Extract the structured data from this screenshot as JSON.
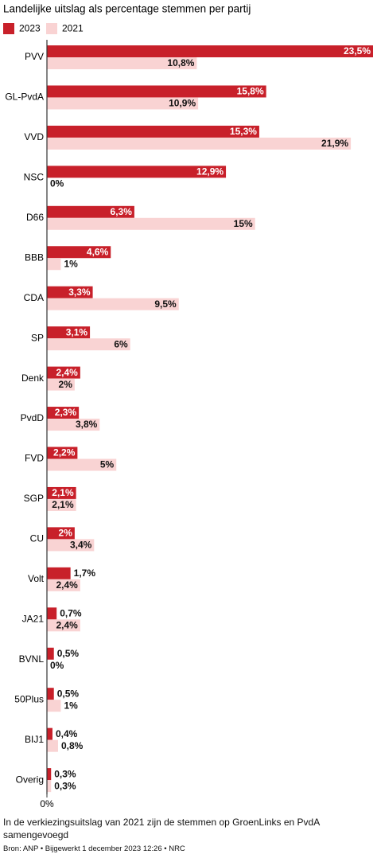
{
  "chart_data": {
    "type": "hbar",
    "title": "Landelijke uitslag als percentage stemmen per partij",
    "categories": [
      "PVV",
      "GL-PvdA",
      "VVD",
      "NSC",
      "D66",
      "BBB",
      "CDA",
      "SP",
      "Denk",
      "PvdD",
      "FVD",
      "SGP",
      "CU",
      "Volt",
      "JA21",
      "BVNL",
      "50Plus",
      "BIJ1",
      "Overig"
    ],
    "series": [
      {
        "name": "2023",
        "color": "#c8202a",
        "label_color_inside": "#ffffff",
        "values": [
          23.5,
          15.8,
          15.3,
          12.9,
          6.3,
          4.6,
          3.3,
          3.1,
          2.4,
          2.3,
          2.2,
          2.1,
          2,
          1.7,
          0.7,
          0.5,
          0.5,
          0.4,
          0.3
        ],
        "value_labels": [
          "23,5%",
          "15,8%",
          "15,3%",
          "12,9%",
          "6,3%",
          "4,6%",
          "3,3%",
          "3,1%",
          "2,4%",
          "2,3%",
          "2,2%",
          "2,1%",
          "2%",
          "1,7%",
          "0,7%",
          "0,5%",
          "0,5%",
          "0,4%",
          "0,3%"
        ]
      },
      {
        "name": "2021",
        "color": "#f9d3d3",
        "label_color_inside": "#111111",
        "values": [
          10.8,
          10.9,
          21.9,
          0,
          15,
          1,
          9.5,
          6,
          2,
          3.8,
          5,
          2.1,
          3.4,
          2.4,
          2.4,
          0,
          1,
          0.8,
          0.3
        ],
        "value_labels": [
          "10,8%",
          "10,9%",
          "21,9%",
          "0%",
          "15%",
          "1%",
          "9,5%",
          "6%",
          "2%",
          "3,8%",
          "5%",
          "2,1%",
          "3,4%",
          "2,4%",
          "2,4%",
          "0%",
          "1%",
          "0,8%",
          "0,3%"
        ]
      }
    ],
    "xlim": [
      0,
      23.5
    ],
    "xticks": [
      {
        "value": 0,
        "label": "0%"
      }
    ],
    "note": "In de verkiezingsuitslag van 2021 zijn de stemmen op GroenLinks en PvdA samengevoegd",
    "source": "Bron: ANP • Bijgewerkt 1 december 2023 12:26 • NRC"
  }
}
